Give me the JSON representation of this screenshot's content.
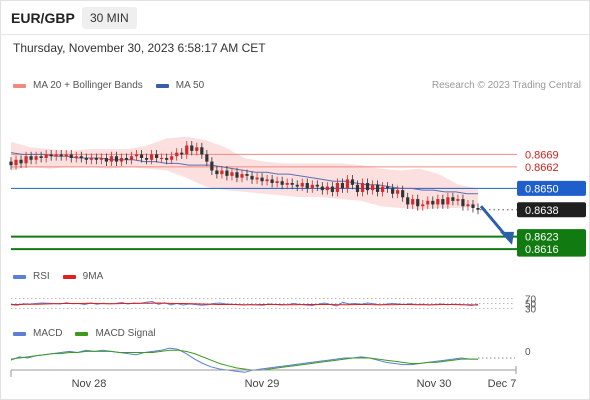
{
  "header": {
    "symbol": "EUR/GBP",
    "timeframe": "30 MIN"
  },
  "datetime": "Thursday, November 30, 2023 6:58:17 AM CET",
  "credit": "Research © 2023 Trading Central",
  "legend_main": [
    {
      "label": "MA 20 + Bollinger Bands",
      "color": "#f08a80"
    },
    {
      "label": "MA 50",
      "color": "#3a5fa6"
    }
  ],
  "legend_rsi": [
    {
      "label": "RSI",
      "color": "#5b7fd6"
    },
    {
      "label": "9MA",
      "color": "#e02020"
    }
  ],
  "legend_macd": [
    {
      "label": "MACD",
      "color": "#5b7fd6"
    },
    {
      "label": "MACD Signal",
      "color": "#3c9b1e"
    }
  ],
  "colors": {
    "resistance": "#f08a80",
    "pivot": "#1f5fcc",
    "support": "#117a11",
    "bollinger_fill": "#fbd6d6",
    "ma50": "#5a6fb0",
    "candle_up": "#d42a2a",
    "candle_down": "#333333",
    "arrow": "#2c5fa8"
  },
  "chart_data": {
    "type": "candlestick",
    "symbol": "EUR/GBP",
    "interval": "30 MIN",
    "ylim": [
      0.8611,
      0.8695
    ],
    "x_ticks": [
      "Nov 28",
      "Nov 29",
      "Nov 30",
      "Dec 7"
    ],
    "close_series": [
      0.8663,
      0.8666,
      0.8664,
      0.8668,
      0.8666,
      0.8668,
      0.8667,
      0.8669,
      0.8668,
      0.8669,
      0.8668,
      0.8669,
      0.8667,
      0.8668,
      0.8667,
      0.8666,
      0.8667,
      0.8666,
      0.8667,
      0.8665,
      0.8668,
      0.8665,
      0.8667,
      0.8666,
      0.8668,
      0.8669,
      0.8667,
      0.8666,
      0.8669,
      0.8667,
      0.8667,
      0.8666,
      0.8668,
      0.867,
      0.8669,
      0.8674,
      0.8671,
      0.8673,
      0.8669,
      0.8665,
      0.866,
      0.8658,
      0.866,
      0.8657,
      0.8659,
      0.8656,
      0.8658,
      0.8657,
      0.8655,
      0.8656,
      0.8654,
      0.8655,
      0.8653,
      0.8654,
      0.8652,
      0.8653,
      0.8652,
      0.8651,
      0.8653,
      0.865,
      0.8652,
      0.8651,
      0.8649,
      0.8651,
      0.8648,
      0.8653,
      0.865,
      0.8655,
      0.8652,
      0.8648,
      0.8653,
      0.8649,
      0.8652,
      0.8648,
      0.8651,
      0.865,
      0.8647,
      0.8649,
      0.8645,
      0.8641,
      0.8644,
      0.864,
      0.8641,
      0.8643,
      0.8641,
      0.8644,
      0.8641,
      0.8645,
      0.8643,
      0.8644,
      0.864,
      0.8641,
      0.8639,
      0.8638
    ],
    "ma50": [
      0.867,
      0.8669,
      0.8669,
      0.8669,
      0.8668,
      0.8668,
      0.8667,
      0.8667,
      0.8667,
      0.8666,
      0.8666,
      0.8666,
      0.8665,
      0.8665,
      0.8664,
      0.8664,
      0.8663,
      0.8663,
      0.8663,
      0.8662,
      0.8661,
      0.866,
      0.8659,
      0.8659,
      0.8658,
      0.8658,
      0.8657,
      0.8656,
      0.8655,
      0.8654,
      0.8654,
      0.8653,
      0.8652,
      0.8652,
      0.8651,
      0.865,
      0.865,
      0.8649,
      0.8649,
      0.8648,
      0.8648,
      0.8647,
      0.8647
    ],
    "bollinger_upper": [
      0.8676,
      0.8673,
      0.8672,
      0.8671,
      0.8672,
      0.8672,
      0.8672,
      0.8674,
      0.8678,
      0.8679,
      0.8677,
      0.8673,
      0.8667,
      0.8665,
      0.8664,
      0.8664,
      0.8664,
      0.8664,
      0.8663,
      0.8661,
      0.866,
      0.8661,
      0.8658,
      0.8652,
      0.865
    ],
    "bollinger_lower": [
      0.866,
      0.8662,
      0.8661,
      0.8662,
      0.8662,
      0.8661,
      0.8662,
      0.8661,
      0.866,
      0.8656,
      0.8651,
      0.8649,
      0.8648,
      0.8647,
      0.8646,
      0.8645,
      0.8645,
      0.8644,
      0.8643,
      0.864,
      0.8639,
      0.8638,
      0.8639,
      0.8639,
      0.864
    ],
    "levels": [
      {
        "value": 0.8669,
        "label": "0.8669",
        "kind": "resistance"
      },
      {
        "value": 0.8662,
        "label": "0.8662",
        "kind": "resistance"
      },
      {
        "value": 0.865,
        "label": "0.8650",
        "kind": "pivot"
      },
      {
        "value": 0.8638,
        "label": "0.8638",
        "kind": "last"
      },
      {
        "value": 0.8623,
        "label": "0.8623",
        "kind": "support"
      },
      {
        "value": 0.8616,
        "label": "0.8616",
        "kind": "support"
      }
    ],
    "forecast_arrow": {
      "from": 0.864,
      "to": 0.862,
      "direction": "down"
    },
    "rsi": {
      "ylim": [
        20,
        80
      ],
      "ticks": [
        70,
        50,
        30
      ],
      "tick_labels": [
        "70",
        "50",
        "30"
      ],
      "values": [
        45,
        43,
        49,
        47,
        50,
        52,
        51,
        50,
        48,
        53,
        49,
        50,
        46,
        52,
        47,
        51,
        49,
        50,
        54,
        48,
        52,
        50,
        55,
        58,
        47,
        53,
        45,
        50,
        44,
        48,
        46,
        43,
        45,
        50,
        52,
        48,
        47,
        45,
        44,
        46,
        44,
        43,
        48,
        46,
        44,
        45,
        50,
        46,
        44,
        42,
        47,
        52,
        46,
        40,
        55,
        48,
        50,
        47,
        52,
        49,
        44,
        47,
        50,
        48,
        46,
        49,
        45,
        47,
        44,
        46,
        48,
        45,
        47,
        46,
        44,
        42,
        47
      ],
      "ma": [
        46,
        46,
        47,
        47,
        48,
        49,
        50,
        50,
        50,
        51,
        50,
        49,
        49,
        50,
        50,
        51,
        51,
        52,
        51,
        50,
        50,
        49,
        48,
        47,
        46,
        46,
        46,
        45,
        45,
        46,
        46,
        46,
        45,
        45,
        46,
        46,
        46,
        46,
        45,
        45,
        46,
        46,
        45,
        45,
        45,
        46,
        46,
        45,
        45,
        45,
        46,
        46,
        45,
        45,
        44
      ]
    },
    "macd": {
      "zero_label": "0",
      "values": [
        -0.0002,
        0.0001,
        0.0,
        0.0002,
        0.0003,
        0.0004,
        0.0005,
        0.0006,
        0.0005,
        0.0007,
        0.0006,
        0.0007,
        0.0006,
        0.0005,
        0.0004,
        0.0003,
        0.0005,
        0.0006,
        0.0007,
        0.0009,
        0.0008,
        0.0004,
        -0.0001,
        -0.0005,
        -0.0008,
        -0.001,
        -0.0011,
        -0.0012,
        -0.0013,
        -0.0011,
        -0.001,
        -0.0009,
        -0.0008,
        -0.0007,
        -0.0006,
        -0.0005,
        -0.0004,
        -0.0003,
        -0.0002,
        -0.0001,
        0.0,
        0.0,
        0.0001,
        0.0,
        -0.0002,
        -0.0004,
        -0.0005,
        -0.0006,
        -0.0006,
        -0.0005,
        -0.0004,
        -0.0003,
        -0.0002,
        -0.0001,
        0.0,
        -0.0001,
        -0.0001
      ],
      "signal": [
        -0.0001,
        0.0,
        0.0001,
        0.0002,
        0.0003,
        0.0004,
        0.0004,
        0.0005,
        0.0005,
        0.0006,
        0.0006,
        0.0006,
        0.0006,
        0.0005,
        0.0005,
        0.0005,
        0.0005,
        0.0005,
        0.0006,
        0.0007,
        0.0007,
        0.0006,
        0.0004,
        0.0001,
        -0.0002,
        -0.0005,
        -0.0007,
        -0.0009,
        -0.001,
        -0.0011,
        -0.0011,
        -0.001,
        -0.0009,
        -0.0008,
        -0.0007,
        -0.0006,
        -0.0005,
        -0.0004,
        -0.0003,
        -0.0002,
        -0.0001,
        0.0,
        0.0,
        0.0,
        -0.0001,
        -0.0002,
        -0.0003,
        -0.0004,
        -0.0005,
        -0.0005,
        -0.0004,
        -0.0004,
        -0.0003,
        -0.0002,
        -0.0001,
        -0.0001,
        -0.0001
      ]
    }
  }
}
